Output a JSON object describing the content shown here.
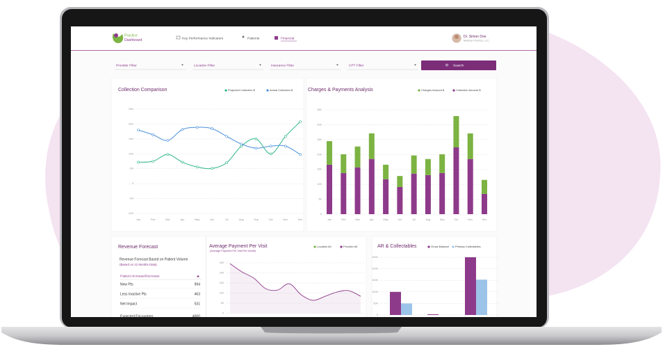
{
  "header": {
    "logo": [
      "Practice",
      "Dashboard"
    ],
    "nav": [
      "Key Performance Indicators",
      "Patients",
      "Financial"
    ],
    "user_name": "Dr. Simon Doe",
    "user_role": "Medical Practice, LLC"
  },
  "filters": {
    "fields": [
      "Provider Filter",
      "Location Filter",
      "Insurance Filter",
      "CPT Filter"
    ],
    "button": "Search"
  },
  "revenue_forecast": {
    "title": "Revenue Forecast",
    "subtitle": "Revenue Forecast Based on Patient Volume",
    "note": "(Based on 12 Months Data)",
    "table_header": "Patient Increase/Decrease",
    "rows": [
      [
        "New Pts",
        994
      ],
      [
        "Less Inactive Pts",
        463
      ],
      [
        "Net Impact",
        531
      ],
      [
        "Expected Encounters",
        4000
      ]
    ]
  },
  "chart_data": [
    {
      "type": "line",
      "title": "Collection Comparison",
      "categories": [
        "Jan",
        "Feb",
        "Mar",
        "Apr",
        "May",
        "Jun",
        "Jul",
        "Aug",
        "Sep",
        "Oct",
        "Nov",
        "Dec"
      ],
      "series": [
        {
          "name": "Projected Collection $",
          "color": "#2bb58a",
          "values": [
            7200,
            7500,
            9800,
            7200,
            5600,
            5100,
            7000,
            12600,
            15000,
            10000,
            15900,
            20800
          ]
        },
        {
          "name": "Actual Collection $",
          "color": "#4a90d9",
          "values": [
            18000,
            16400,
            14500,
            18200,
            18900,
            18500,
            15900,
            13300,
            11900,
            12600,
            12600,
            9800
          ]
        }
      ],
      "ylim": [
        -10000,
        25000
      ],
      "yticks": [
        {
          "value": -10000,
          "label": "-10K"
        },
        {
          "value": -5000,
          "label": "-5K"
        },
        0,
        {
          "value": 5000,
          "label": "5K"
        },
        {
          "value": 10000,
          "label": "10K"
        },
        {
          "value": 15000,
          "label": "15K"
        },
        {
          "value": 20000,
          "label": "20K"
        },
        {
          "value": 25000,
          "label": "25K"
        }
      ],
      "grid": true,
      "smooth": true
    },
    {
      "type": "bar",
      "stacked": true,
      "title": "Charges & Payments Analysis",
      "categories": [
        "Jan",
        "Feb",
        "Mar",
        "Apr",
        "May",
        "Jun",
        "Jul",
        "Aug",
        "Sep",
        "Oct",
        "Nov",
        "Dec"
      ],
      "series": [
        {
          "name": "Collection Amount $",
          "color": "#8e3a8a",
          "values": [
            16600,
            13800,
            15700,
            18500,
            11700,
            9100,
            13600,
            13100,
            13800,
            22400,
            18500,
            6800
          ]
        },
        {
          "name": "Charges Amount $",
          "color": "#7cb342",
          "values": [
            7900,
            6300,
            7000,
            8600,
            4900,
            3700,
            6100,
            5400,
            6300,
            10500,
            8600,
            4700
          ]
        }
      ],
      "ylim": [
        0,
        35000
      ],
      "yticks": [
        0,
        {
          "value": 5000,
          "label": "5K"
        },
        {
          "value": 10000,
          "label": "10K"
        },
        {
          "value": 15000,
          "label": "15K"
        },
        {
          "value": 20000,
          "label": "20K"
        },
        {
          "value": 25000,
          "label": "25K"
        },
        {
          "value": 30000,
          "label": "30K"
        },
        {
          "value": 35000,
          "label": "35K"
        }
      ],
      "grid": true
    },
    {
      "type": "area",
      "title": "Average Payment Per Visit",
      "subtitle": "(Average Payment Per Visit Per Month)",
      "legend": [
        {
          "label": "Location All",
          "color": "#7cb342"
        },
        {
          "label": "Provider All",
          "color": "#8e3a8a"
        }
      ],
      "series": [
        {
          "color": "#8e3a8a",
          "values": [
            246,
            205,
            174,
            122,
            115,
            146,
            91,
            64,
            84,
            105,
            112,
            84
          ]
        }
      ],
      "ylim": [
        0,
        250
      ],
      "yticks": [
        0,
        50,
        100,
        150,
        200,
        250
      ],
      "grid": true,
      "smooth": true
    },
    {
      "type": "bar",
      "title": "AR & Collectables",
      "series": [
        {
          "name": "Gross Balance",
          "color": "#8e3a8a",
          "values": [
            100000,
            3000,
            250000
          ]
        },
        {
          "name": "Primary Collectables",
          "color": "#9cc3e8",
          "values": [
            50000,
            0,
            153000
          ]
        }
      ],
      "ylim": [
        0,
        250000
      ],
      "yticks": [
        0,
        {
          "value": 50000,
          "label": "50K"
        },
        {
          "value": 100000,
          "label": "100K"
        },
        {
          "value": 150000,
          "label": "150K"
        },
        {
          "value": 200000,
          "label": "200K"
        },
        {
          "value": 250000,
          "label": "250K"
        }
      ],
      "grid": true
    }
  ]
}
